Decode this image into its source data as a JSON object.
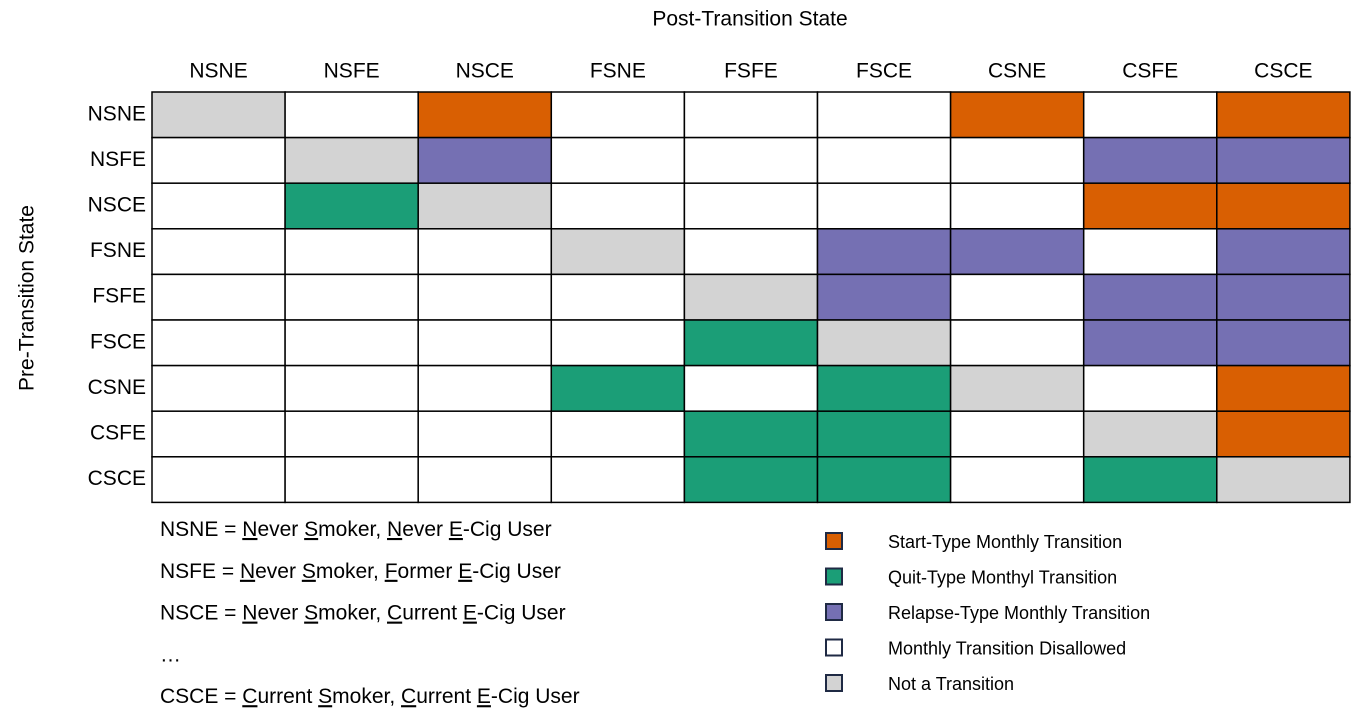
{
  "title_columns": "Post-Transition State",
  "title_rows": "Pre-Transition State",
  "states": [
    "NSNE",
    "NSFE",
    "NSCE",
    "FSNE",
    "FSFE",
    "FSCE",
    "CSNE",
    "CSFE",
    "CSCE"
  ],
  "legend": [
    {
      "label": "Start-Type Monthly Transition",
      "color": "#d95f02"
    },
    {
      "label": "Quit-Type Monthyl Transition",
      "color": "#1b9e77"
    },
    {
      "label": "Relapse-Type Monthly Transition",
      "color": "#7570b3"
    },
    {
      "label": "Monthly Transition Disallowed",
      "color": "#ffffff"
    },
    {
      "label": "Not a Transition",
      "color": "#d3d3d3"
    }
  ],
  "cells": [
    [
      4,
      3,
      0,
      3,
      3,
      3,
      0,
      3,
      0
    ],
    [
      3,
      4,
      2,
      3,
      3,
      3,
      3,
      2,
      2
    ],
    [
      3,
      1,
      4,
      3,
      3,
      3,
      3,
      0,
      0
    ],
    [
      3,
      3,
      3,
      4,
      3,
      2,
      2,
      3,
      2
    ],
    [
      3,
      3,
      3,
      3,
      4,
      2,
      3,
      2,
      2
    ],
    [
      3,
      3,
      3,
      3,
      1,
      4,
      3,
      2,
      2
    ],
    [
      3,
      3,
      3,
      1,
      3,
      1,
      4,
      3,
      0
    ],
    [
      3,
      3,
      3,
      3,
      1,
      1,
      3,
      4,
      0
    ],
    [
      3,
      3,
      3,
      3,
      1,
      1,
      3,
      1,
      4
    ]
  ],
  "definitions": [
    [
      "NSNE = ",
      "N",
      "ever ",
      "S",
      "moker, ",
      "N",
      "ever ",
      "E",
      "-Cig User"
    ],
    [
      "NSFE = ",
      "N",
      "ever ",
      "S",
      "moker, ",
      "F",
      "ormer ",
      "E",
      "-Cig User"
    ],
    [
      "NSCE = ",
      "N",
      "ever ",
      "S",
      "moker, ",
      "C",
      "urrent ",
      "E",
      "-Cig User"
    ],
    [
      "…"
    ],
    [
      "CSCE = ",
      "C",
      "urrent ",
      "S",
      "moker, ",
      "C",
      "urrent ",
      "E",
      "-Cig User"
    ]
  ]
}
